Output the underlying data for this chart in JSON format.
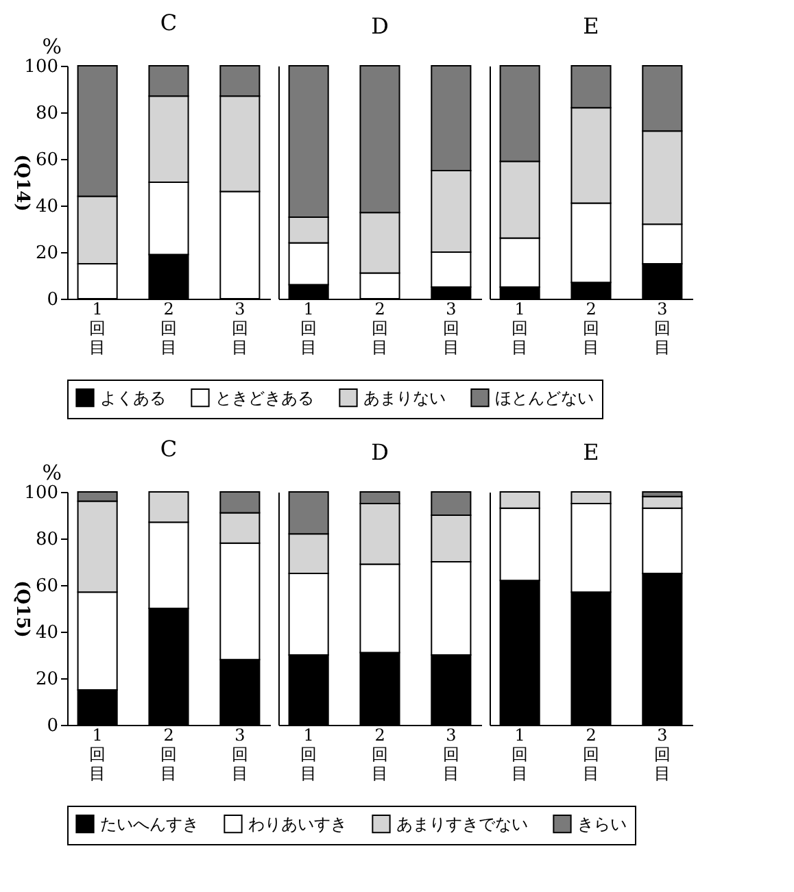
{
  "chart_data": [
    {
      "type": "bar",
      "stacked": true,
      "title": "C",
      "ylabel": "(Q14)",
      "annotations": [
        "%"
      ],
      "categories": [
        "1回目",
        "2回目",
        "3回目"
      ],
      "ylim": [
        0,
        100
      ],
      "yticks": [
        0,
        20,
        40,
        60,
        80,
        100
      ],
      "legend": "bottom",
      "series": [
        {
          "name": "よくある",
          "color": "#000000",
          "values": [
            0,
            19,
            0
          ]
        },
        {
          "name": "ときどきある",
          "color": "#ffffff",
          "values": [
            15,
            31,
            46
          ]
        },
        {
          "name": "あまりない",
          "color": "#d4d4d4",
          "values": [
            29,
            37,
            41
          ]
        },
        {
          "name": "ほとんどない",
          "color": "#7a7a7a",
          "values": [
            56,
            13,
            13
          ]
        }
      ]
    },
    {
      "type": "bar",
      "stacked": true,
      "title": "D",
      "categories": [
        "1回目",
        "2回目",
        "3回目"
      ],
      "ylim": [
        0,
        100
      ],
      "yticks": [
        0,
        20,
        40,
        60,
        80,
        100
      ],
      "tick_labels": "x",
      "legend": "bottom",
      "series": [
        {
          "name": "よくある",
          "color": "#000000",
          "values": [
            6,
            0,
            5
          ]
        },
        {
          "name": "ときどきある",
          "color": "#ffffff",
          "values": [
            18,
            11,
            15
          ]
        },
        {
          "name": "あまりない",
          "color": "#d4d4d4",
          "values": [
            11,
            26,
            35
          ]
        },
        {
          "name": "ほとんどない",
          "color": "#7a7a7a",
          "values": [
            65,
            63,
            45
          ]
        }
      ]
    },
    {
      "type": "bar",
      "stacked": true,
      "title": "E",
      "categories": [
        "1回目",
        "2回目",
        "3回目"
      ],
      "ylim": [
        0,
        100
      ],
      "yticks": [
        0,
        20,
        40,
        60,
        80,
        100
      ],
      "tick_labels": "x",
      "legend": "bottom",
      "series": [
        {
          "name": "よくある",
          "color": "#000000",
          "values": [
            5,
            7,
            15
          ]
        },
        {
          "name": "ときどきある",
          "color": "#ffffff",
          "values": [
            21,
            34,
            17
          ]
        },
        {
          "name": "あまりない",
          "color": "#d4d4d4",
          "values": [
            33,
            41,
            40
          ]
        },
        {
          "name": "ほとんどない",
          "color": "#7a7a7a",
          "values": [
            41,
            18,
            28
          ]
        }
      ]
    },
    {
      "type": "bar",
      "stacked": true,
      "title": "C",
      "ylabel": "(Q15)",
      "annotations": [
        "%"
      ],
      "categories": [
        "1回目",
        "2回目",
        "3回目"
      ],
      "ylim": [
        0,
        100
      ],
      "yticks": [
        0,
        20,
        40,
        60,
        80,
        100
      ],
      "legend": "bottom",
      "series": [
        {
          "name": "たいへんすき",
          "color": "#000000",
          "values": [
            15,
            50,
            28
          ]
        },
        {
          "name": "わりあいすき",
          "color": "#ffffff",
          "values": [
            42,
            37,
            50
          ]
        },
        {
          "name": "あまりすきでない",
          "color": "#d4d4d4",
          "values": [
            39,
            13,
            13
          ]
        },
        {
          "name": "きらい",
          "color": "#7a7a7a",
          "values": [
            4,
            0,
            9
          ]
        }
      ]
    },
    {
      "type": "bar",
      "stacked": true,
      "title": "D",
      "categories": [
        "1回目",
        "2回目",
        "3回目"
      ],
      "ylim": [
        0,
        100
      ],
      "yticks": [
        0,
        20,
        40,
        60,
        80,
        100
      ],
      "tick_labels": "x",
      "legend": "bottom",
      "series": [
        {
          "name": "たいへんすき",
          "color": "#000000",
          "values": [
            30,
            31,
            30
          ]
        },
        {
          "name": "わりあいすき",
          "color": "#ffffff",
          "values": [
            35,
            38,
            40
          ]
        },
        {
          "name": "あまりすきでない",
          "color": "#d4d4d4",
          "values": [
            17,
            26,
            20
          ]
        },
        {
          "name": "きらい",
          "color": "#7a7a7a",
          "values": [
            18,
            5,
            10
          ]
        }
      ]
    },
    {
      "type": "bar",
      "stacked": true,
      "title": "E",
      "categories": [
        "1回目",
        "2回目",
        "3回目"
      ],
      "ylim": [
        0,
        100
      ],
      "yticks": [
        0,
        20,
        40,
        60,
        80,
        100
      ],
      "tick_labels": "x",
      "legend": "bottom",
      "series": [
        {
          "name": "たいへんすき",
          "color": "#000000",
          "values": [
            62,
            57,
            65
          ]
        },
        {
          "name": "わりあいすき",
          "color": "#ffffff",
          "values": [
            31,
            38,
            28
          ]
        },
        {
          "name": "あまりすきでない",
          "color": "#d4d4d4",
          "values": [
            7,
            5,
            5
          ]
        },
        {
          "name": "きらい",
          "color": "#7a7a7a",
          "values": [
            0,
            0,
            2
          ]
        }
      ]
    }
  ]
}
